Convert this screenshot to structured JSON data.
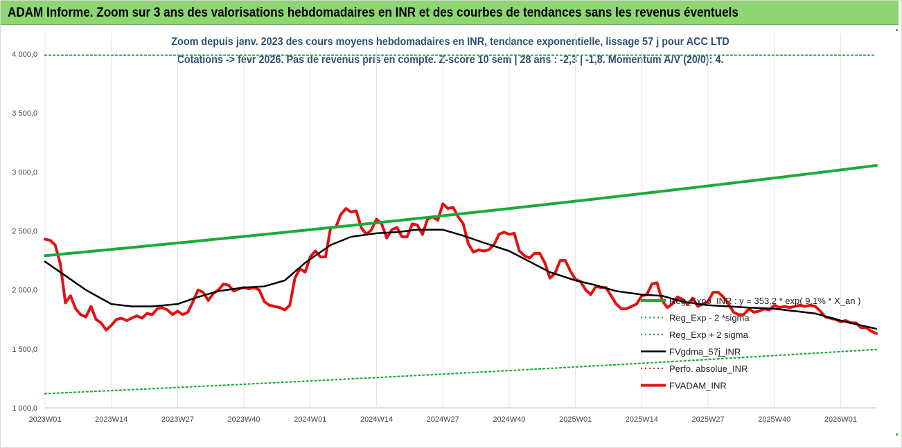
{
  "header": {
    "title": "ADAM Informe. Zoom sur 3 ans des valorisations hebdomadaires en INR et des courbes de tendances sans les revenus éventuels"
  },
  "chart_data": {
    "type": "line",
    "title": "Zoom depuis janv. 2023 des cours moyens hebdomadaires en INR, tendance exponentielle, lissage 57 j pour ACC LTD",
    "subtitle": "Cotations -> févr 2026.  Pas de revenus pris en compte. Z-score 10 sem | 28 ans : -2,3 | -1,8. Momentum A/V (20/0): 4.",
    "ylim": [
      1000,
      4000
    ],
    "y_ticks": [
      "1 000,0",
      "1 500,0",
      "2 000,0",
      "2 500,0",
      "3 000,0",
      "3 500,0",
      "4 000,0"
    ],
    "x_ticks": [
      "2023W01",
      "2023W14",
      "2023W27",
      "2023W40",
      "2024W01",
      "2024W14",
      "2024W27",
      "2024W40",
      "2025W01",
      "2025W14",
      "2025W27",
      "2025W40",
      "2026W01"
    ],
    "grid": "vertical",
    "legend_position": "bottom-right",
    "series": [
      {
        "name": "Reg_Expo_INR : y = 353,2 * exp( 9,1% *  X_an )",
        "style": "solid-thick",
        "color": "#1aab3a",
        "x": [
          "2023W01",
          "2026W08"
        ],
        "y": [
          2290,
          3055
        ]
      },
      {
        "name": "Reg_Exp - 2 *sigma",
        "style": "dotted",
        "color": "#1aab3a",
        "x": [
          "2023W01",
          "2026W08"
        ],
        "y": [
          1120,
          1495
        ]
      },
      {
        "name": "Reg_Exp + 2 sigma",
        "style": "dotted",
        "color": "#1aab3a",
        "x": [
          "2023W01",
          "2026W08"
        ],
        "y": [
          3990,
          3990
        ]
      },
      {
        "name": "FVgdma_57j_INR",
        "style": "solid",
        "color": "#000000",
        "x": [
          "2023W01",
          "2023W05",
          "2023W09",
          "2023W14",
          "2023W18",
          "2023W22",
          "2023W27",
          "2023W31",
          "2023W35",
          "2023W40",
          "2023W44",
          "2023W48",
          "2023W52",
          "2024W05",
          "2024W09",
          "2024W14",
          "2024W18",
          "2024W22",
          "2024W27",
          "2024W31",
          "2024W35",
          "2024W40",
          "2024W44",
          "2024W48",
          "2025W01",
          "2025W05",
          "2025W09",
          "2025W14",
          "2025W18",
          "2025W22",
          "2025W27",
          "2025W31",
          "2025W35",
          "2025W40",
          "2025W44",
          "2025W48",
          "2026W01",
          "2026W05",
          "2026W08"
        ],
        "y": [
          2240,
          2120,
          2000,
          1880,
          1860,
          1860,
          1880,
          1940,
          1990,
          2020,
          2030,
          2080,
          2230,
          2380,
          2450,
          2480,
          2490,
          2510,
          2510,
          2460,
          2400,
          2330,
          2240,
          2150,
          2080,
          2040,
          1990,
          1960,
          1950,
          1900,
          1870,
          1860,
          1850,
          1840,
          1820,
          1800,
          1740,
          1700,
          1670
        ]
      },
      {
        "name": "Perfo. absolue_INR",
        "style": "dotted",
        "color": "#e02020",
        "x": [],
        "y": []
      },
      {
        "name": "FVADAM_INR",
        "style": "solid-thick",
        "color": "#e41010",
        "x": [
          "2023W01",
          "2023W02",
          "2023W03",
          "2023W04",
          "2023W05",
          "2023W06",
          "2023W07",
          "2023W08",
          "2023W09",
          "2023W10",
          "2023W11",
          "2023W12",
          "2023W13",
          "2023W14",
          "2023W15",
          "2023W16",
          "2023W17",
          "2023W18",
          "2023W19",
          "2023W20",
          "2023W21",
          "2023W22",
          "2023W23",
          "2023W24",
          "2023W25",
          "2023W26",
          "2023W27",
          "2023W28",
          "2023W29",
          "2023W30",
          "2023W31",
          "2023W32",
          "2023W33",
          "2023W34",
          "2023W35",
          "2023W36",
          "2023W37",
          "2023W38",
          "2023W39",
          "2023W40",
          "2023W41",
          "2023W42",
          "2023W43",
          "2023W44",
          "2023W45",
          "2023W46",
          "2023W47",
          "2023W48",
          "2023W49",
          "2023W50",
          "2023W51",
          "2023W52",
          "2024W01",
          "2024W02",
          "2024W03",
          "2024W04",
          "2024W05",
          "2024W06",
          "2024W07",
          "2024W08",
          "2024W09",
          "2024W10",
          "2024W11",
          "2024W12",
          "2024W13",
          "2024W14",
          "2024W15",
          "2024W16",
          "2024W17",
          "2024W18",
          "2024W19",
          "2024W20",
          "2024W21",
          "2024W22",
          "2024W23",
          "2024W24",
          "2024W25",
          "2024W26",
          "2024W27",
          "2024W28",
          "2024W29",
          "2024W30",
          "2024W31",
          "2024W32",
          "2024W33",
          "2024W34",
          "2024W35",
          "2024W36",
          "2024W37",
          "2024W38",
          "2024W39",
          "2024W40",
          "2024W41",
          "2024W42",
          "2024W43",
          "2024W44",
          "2024W45",
          "2024W46",
          "2024W47",
          "2024W48",
          "2024W49",
          "2024W50",
          "2024W51",
          "2024W52",
          "2025W01",
          "2025W02",
          "2025W03",
          "2025W04",
          "2025W05",
          "2025W06",
          "2025W07",
          "2025W08",
          "2025W09",
          "2025W10",
          "2025W11",
          "2025W12",
          "2025W13",
          "2025W14",
          "2025W15",
          "2025W16",
          "2025W17",
          "2025W18",
          "2025W19",
          "2025W20",
          "2025W21",
          "2025W22",
          "2025W23",
          "2025W24",
          "2025W25",
          "2025W26",
          "2025W27",
          "2025W28",
          "2025W29",
          "2025W30",
          "2025W31",
          "2025W32",
          "2025W33",
          "2025W34",
          "2025W35",
          "2025W36",
          "2025W37",
          "2025W38",
          "2025W39",
          "2025W40",
          "2025W41",
          "2025W42",
          "2025W43",
          "2025W44",
          "2025W45",
          "2025W46",
          "2025W47",
          "2025W48",
          "2025W49",
          "2025W50",
          "2025W51",
          "2025W52",
          "2026W01",
          "2026W02",
          "2026W03",
          "2026W04",
          "2026W05",
          "2026W06",
          "2026W07",
          "2026W08"
        ],
        "y": [
          2430,
          2420,
          2380,
          2220,
          1890,
          1950,
          1840,
          1790,
          1770,
          1860,
          1750,
          1720,
          1660,
          1700,
          1750,
          1760,
          1740,
          1760,
          1780,
          1760,
          1800,
          1790,
          1840,
          1850,
          1830,
          1790,
          1820,
          1790,
          1810,
          1900,
          2000,
          1980,
          1910,
          1970,
          2000,
          2050,
          2040,
          1990,
          2010,
          2020,
          2010,
          2020,
          2000,
          1900,
          1870,
          1860,
          1850,
          1830,
          1870,
          2100,
          2180,
          2150,
          2280,
          2330,
          2280,
          2280,
          2530,
          2530,
          2640,
          2690,
          2660,
          2670,
          2530,
          2470,
          2510,
          2600,
          2560,
          2440,
          2510,
          2530,
          2450,
          2450,
          2560,
          2550,
          2470,
          2600,
          2620,
          2590,
          2730,
          2690,
          2700,
          2620,
          2560,
          2390,
          2320,
          2340,
          2330,
          2340,
          2380,
          2470,
          2490,
          2470,
          2480,
          2330,
          2290,
          2270,
          2310,
          2310,
          2230,
          2100,
          2140,
          2250,
          2250,
          2160,
          2090,
          2070,
          2000,
          1960,
          2030,
          2020,
          2020,
          1950,
          1880,
          1840,
          1840,
          1860,
          1880,
          1950,
          1960,
          2050,
          2060,
          1910,
          1850,
          1880,
          1940,
          1920,
          1880,
          1930,
          1860,
          1880,
          1900,
          1980,
          1980,
          1940,
          1880,
          1810,
          1790,
          1790,
          1840,
          1810,
          1820,
          1840,
          1830,
          1870,
          1850,
          1860,
          1850,
          1860,
          1870,
          1860,
          1870,
          1860,
          1820,
          1770,
          1760,
          1750,
          1730,
          1740,
          1720,
          1720,
          1680,
          1680,
          1650,
          1630
        ]
      }
    ]
  }
}
